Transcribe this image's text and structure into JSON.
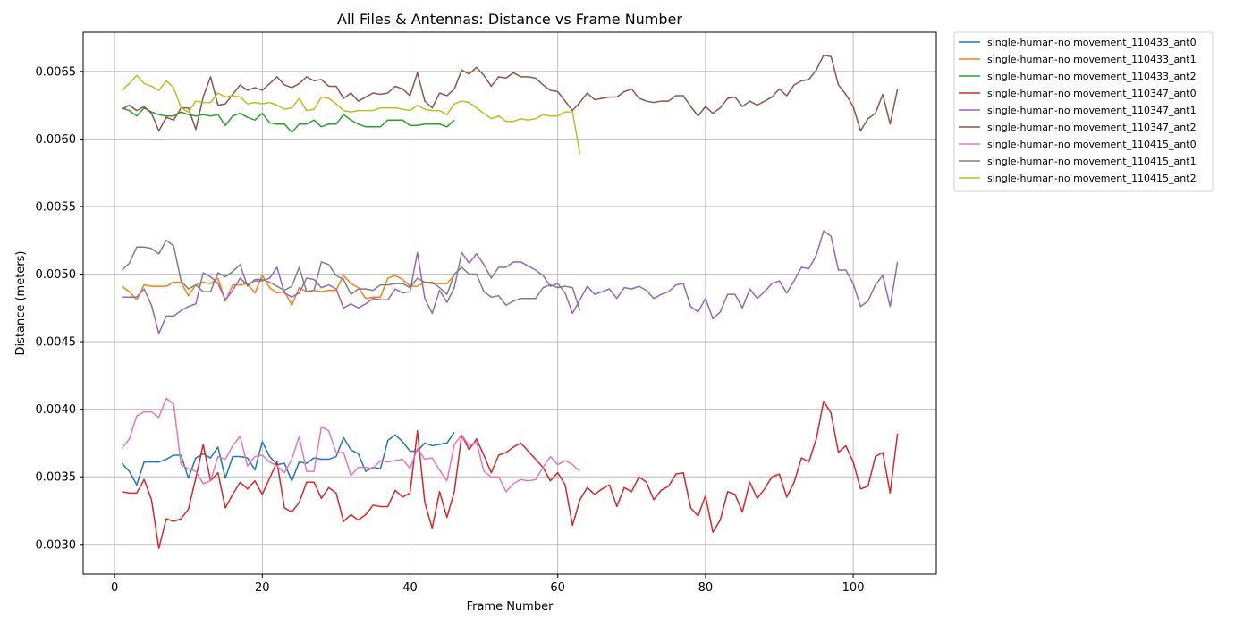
{
  "chart_data": {
    "type": "line",
    "title": "All Files & Antennas: Distance vs Frame Number",
    "xlabel": "Frame Number",
    "ylabel": "Distance (meters)",
    "xlim": [
      -4.25,
      111.25
    ],
    "ylim": [
      0.00278,
      0.00679
    ],
    "xticks": [
      0,
      20,
      40,
      60,
      80,
      100
    ],
    "yticks": [
      0.003,
      0.0035,
      0.004,
      0.0045,
      0.005,
      0.0055,
      0.006,
      0.0065
    ],
    "xtick_labels": [
      "0",
      "20",
      "40",
      "60",
      "80",
      "100"
    ],
    "ytick_labels": [
      "0.0030",
      "0.0035",
      "0.0040",
      "0.0045",
      "0.0050",
      "0.0055",
      "0.0060",
      "0.0065"
    ],
    "grid": true,
    "legend_position": "outside-top-right",
    "series": [
      {
        "name": "single-human-no movement_110433_ant0",
        "color": "#1f77b4",
        "x_start": 1,
        "values": [
          0.0036,
          0.00354,
          0.00344,
          0.00361,
          0.00361,
          0.00361,
          0.00363,
          0.00366,
          0.00366,
          0.00349,
          0.00364,
          0.00367,
          0.00364,
          0.00372,
          0.00349,
          0.00365,
          0.00365,
          0.00364,
          0.00355,
          0.00376,
          0.00365,
          0.00359,
          0.0036,
          0.00347,
          0.00361,
          0.0036,
          0.00364,
          0.00363,
          0.00363,
          0.00365,
          0.00379,
          0.0037,
          0.00367,
          0.00354,
          0.00357,
          0.00356,
          0.00377,
          0.00381,
          0.00376,
          0.00369,
          0.00369,
          0.00375,
          0.00373,
          0.00374,
          0.00375,
          0.00383
        ]
      },
      {
        "name": "single-human-no movement_110433_ant1",
        "color": "#ff7f0e",
        "x_start": 1,
        "values": [
          0.00491,
          0.00487,
          0.00481,
          0.00492,
          0.00491,
          0.00491,
          0.00491,
          0.00494,
          0.00494,
          0.00484,
          0.00492,
          0.00494,
          0.00493,
          0.00497,
          0.0048,
          0.00492,
          0.00492,
          0.00493,
          0.00486,
          0.00499,
          0.0049,
          0.00486,
          0.00487,
          0.00477,
          0.0049,
          0.00487,
          0.00488,
          0.00487,
          0.00488,
          0.00488,
          0.00499,
          0.00493,
          0.0049,
          0.00482,
          0.00483,
          0.00483,
          0.00497,
          0.00499,
          0.00496,
          0.00491,
          0.00491,
          0.00494,
          0.00493,
          0.00493,
          0.00493,
          0.00499
        ]
      },
      {
        "name": "single-human-no movement_110433_ant2",
        "color": "#2ca02c",
        "x_start": 1,
        "values": [
          0.00623,
          0.00621,
          0.00617,
          0.00623,
          0.0062,
          0.00618,
          0.00617,
          0.00617,
          0.0062,
          0.00618,
          0.00617,
          0.00618,
          0.00617,
          0.00618,
          0.0061,
          0.00617,
          0.00619,
          0.00616,
          0.00614,
          0.00619,
          0.00612,
          0.00611,
          0.00611,
          0.00605,
          0.00611,
          0.00611,
          0.00614,
          0.00609,
          0.00611,
          0.00611,
          0.00618,
          0.00614,
          0.00611,
          0.00609,
          0.00609,
          0.00609,
          0.00614,
          0.00614,
          0.00614,
          0.0061,
          0.0061,
          0.00611,
          0.00611,
          0.00611,
          0.00609,
          0.00614
        ]
      },
      {
        "name": "single-human-no movement_110347_ant0",
        "color": "#d62728",
        "x_start": 1,
        "values": [
          0.00339,
          0.00338,
          0.00338,
          0.00348,
          0.00333,
          0.00297,
          0.00319,
          0.00317,
          0.00319,
          0.00326,
          0.00349,
          0.00374,
          0.00347,
          0.00353,
          0.00327,
          0.00337,
          0.00346,
          0.00341,
          0.00347,
          0.00337,
          0.00349,
          0.00361,
          0.00327,
          0.00324,
          0.00331,
          0.00346,
          0.00346,
          0.00334,
          0.00342,
          0.00338,
          0.00317,
          0.00322,
          0.00318,
          0.00322,
          0.00329,
          0.00328,
          0.00328,
          0.0034,
          0.00335,
          0.00338,
          0.00384,
          0.00331,
          0.00312,
          0.00339,
          0.0032,
          0.00339,
          0.00381,
          0.0037,
          0.00378,
          0.00366,
          0.00353,
          0.00366,
          0.00368,
          0.00372,
          0.00375,
          0.00369,
          0.00363,
          0.00357,
          0.00347,
          0.00353,
          0.00344,
          0.00314,
          0.00333,
          0.00342,
          0.00337,
          0.00341,
          0.00344,
          0.00328,
          0.00342,
          0.00339,
          0.0035,
          0.00346,
          0.00333,
          0.0034,
          0.00343,
          0.00352,
          0.00353,
          0.00327,
          0.00321,
          0.00336,
          0.00309,
          0.00318,
          0.00339,
          0.00337,
          0.00324,
          0.00346,
          0.00334,
          0.00341,
          0.0035,
          0.00352,
          0.00335,
          0.00346,
          0.00364,
          0.00361,
          0.00378,
          0.00406,
          0.00397,
          0.00368,
          0.00373,
          0.00361,
          0.00341,
          0.00343,
          0.00365,
          0.00368,
          0.00338,
          0.00382
        ]
      },
      {
        "name": "single-human-no movement_110347_ant1",
        "color": "#9467bd",
        "x_start": 1,
        "values": [
          0.00483,
          0.00483,
          0.00483,
          0.00489,
          0.00477,
          0.00456,
          0.00469,
          0.00469,
          0.00473,
          0.00476,
          0.00478,
          0.00501,
          0.00498,
          0.00493,
          0.00481,
          0.00488,
          0.00497,
          0.00492,
          0.00495,
          0.00495,
          0.00497,
          0.00505,
          0.00486,
          0.00483,
          0.00486,
          0.00497,
          0.00496,
          0.0049,
          0.00492,
          0.00489,
          0.00475,
          0.00478,
          0.00475,
          0.00478,
          0.00482,
          0.00481,
          0.00481,
          0.00489,
          0.00486,
          0.00487,
          0.00516,
          0.00482,
          0.00471,
          0.00488,
          0.00479,
          0.0049,
          0.00516,
          0.00508,
          0.00515,
          0.00507,
          0.00497,
          0.00505,
          0.00505,
          0.00509,
          0.00509,
          0.00506,
          0.00503,
          0.00499,
          0.00491,
          0.00493,
          0.00486,
          0.00471,
          0.00481,
          0.00491,
          0.00485,
          0.00487,
          0.00489,
          0.00482,
          0.0049,
          0.00489,
          0.00491,
          0.00488,
          0.00482,
          0.00485,
          0.00487,
          0.00492,
          0.00493,
          0.00476,
          0.00472,
          0.00482,
          0.00467,
          0.00472,
          0.00485,
          0.00485,
          0.00475,
          0.00489,
          0.00482,
          0.00487,
          0.00493,
          0.00495,
          0.00486,
          0.00495,
          0.00505,
          0.00504,
          0.00514,
          0.00532,
          0.00528,
          0.00503,
          0.00503,
          0.00493,
          0.00476,
          0.0048,
          0.00492,
          0.00499,
          0.00476,
          0.00509
        ]
      },
      {
        "name": "single-human-no movement_110347_ant2",
        "color": "#8c564b",
        "x_start": 1,
        "values": [
          0.00622,
          0.00625,
          0.00621,
          0.00624,
          0.00619,
          0.00606,
          0.00616,
          0.00614,
          0.00623,
          0.00623,
          0.00607,
          0.00631,
          0.00646,
          0.00625,
          0.00626,
          0.00633,
          0.0064,
          0.00636,
          0.00638,
          0.00636,
          0.00641,
          0.00646,
          0.0064,
          0.00638,
          0.00641,
          0.00646,
          0.00643,
          0.00644,
          0.00639,
          0.00639,
          0.0063,
          0.00634,
          0.00628,
          0.00631,
          0.00634,
          0.00633,
          0.00634,
          0.00639,
          0.00637,
          0.00632,
          0.00649,
          0.00628,
          0.00623,
          0.00634,
          0.00632,
          0.00637,
          0.00651,
          0.00648,
          0.00653,
          0.00647,
          0.00639,
          0.00646,
          0.00645,
          0.00649,
          0.00646,
          0.00646,
          0.00645,
          0.0064,
          0.00636,
          0.00635,
          0.00628,
          0.00621,
          0.00627,
          0.00634,
          0.00629,
          0.0063,
          0.00631,
          0.00631,
          0.00635,
          0.00637,
          0.0063,
          0.00628,
          0.00627,
          0.00628,
          0.00628,
          0.00632,
          0.00632,
          0.00624,
          0.00617,
          0.00624,
          0.00619,
          0.00623,
          0.0063,
          0.00631,
          0.00624,
          0.00628,
          0.00625,
          0.00628,
          0.00631,
          0.00637,
          0.00632,
          0.0064,
          0.00643,
          0.00644,
          0.00651,
          0.00662,
          0.00661,
          0.0064,
          0.00633,
          0.00624,
          0.00606,
          0.00615,
          0.00619,
          0.00633,
          0.00611,
          0.00637
        ]
      },
      {
        "name": "single-human-no movement_110415_ant0",
        "color": "#e377c2",
        "x_start": 1,
        "values": [
          0.00371,
          0.00378,
          0.00395,
          0.00398,
          0.00398,
          0.00394,
          0.00408,
          0.00404,
          0.00359,
          0.00356,
          0.00354,
          0.00345,
          0.00347,
          0.00365,
          0.00363,
          0.00373,
          0.0038,
          0.00358,
          0.00365,
          0.00366,
          0.00361,
          0.00358,
          0.00353,
          0.00363,
          0.0038,
          0.00354,
          0.00354,
          0.00387,
          0.00384,
          0.00368,
          0.00368,
          0.00351,
          0.00357,
          0.00357,
          0.00356,
          0.00362,
          0.00361,
          0.00362,
          0.00363,
          0.00356,
          0.00371,
          0.00363,
          0.00364,
          0.00355,
          0.00347,
          0.00374,
          0.00381,
          0.00373,
          0.00376,
          0.00354,
          0.0035,
          0.0035,
          0.00339,
          0.00345,
          0.00348,
          0.00347,
          0.00348,
          0.00357,
          0.00365,
          0.00359,
          0.00362,
          0.00359,
          0.00354
        ]
      },
      {
        "name": "single-human-no movement_110415_ant1",
        "color": "#7f7f7f",
        "x_start": 1,
        "values": [
          0.00503,
          0.00508,
          0.0052,
          0.0052,
          0.00519,
          0.00515,
          0.00525,
          0.00521,
          0.00495,
          0.00489,
          0.00492,
          0.00487,
          0.00487,
          0.00501,
          0.00498,
          0.00502,
          0.00507,
          0.00491,
          0.00496,
          0.00496,
          0.00494,
          0.00491,
          0.00488,
          0.00491,
          0.00505,
          0.00487,
          0.00488,
          0.00509,
          0.00507,
          0.00499,
          0.00496,
          0.00485,
          0.00489,
          0.00489,
          0.00488,
          0.00492,
          0.00492,
          0.00493,
          0.00493,
          0.0049,
          0.00497,
          0.00494,
          0.00494,
          0.0049,
          0.00485,
          0.005,
          0.00505,
          0.005,
          0.005,
          0.00487,
          0.00483,
          0.00484,
          0.00477,
          0.0048,
          0.00482,
          0.00482,
          0.00482,
          0.0049,
          0.00492,
          0.0049,
          0.00491,
          0.0049,
          0.00473
        ]
      },
      {
        "name": "single-human-no movement_110415_ant2",
        "color": "#bcbd22",
        "x_start": 1,
        "values": [
          0.00636,
          0.00641,
          0.00647,
          0.00641,
          0.00639,
          0.00636,
          0.00643,
          0.00638,
          0.00623,
          0.0062,
          0.00628,
          0.00627,
          0.00627,
          0.00634,
          0.00631,
          0.00632,
          0.00631,
          0.00626,
          0.00627,
          0.00626,
          0.00627,
          0.00625,
          0.00622,
          0.00623,
          0.0063,
          0.00621,
          0.00622,
          0.00631,
          0.0063,
          0.00626,
          0.00621,
          0.0062,
          0.00621,
          0.00621,
          0.00621,
          0.00623,
          0.00623,
          0.00623,
          0.00622,
          0.00621,
          0.00625,
          0.00622,
          0.00621,
          0.00621,
          0.00618,
          0.00626,
          0.00628,
          0.00627,
          0.00623,
          0.00619,
          0.00615,
          0.00617,
          0.00613,
          0.00613,
          0.00615,
          0.00614,
          0.00615,
          0.00618,
          0.00617,
          0.00617,
          0.0062,
          0.0062,
          0.00589
        ]
      }
    ]
  }
}
